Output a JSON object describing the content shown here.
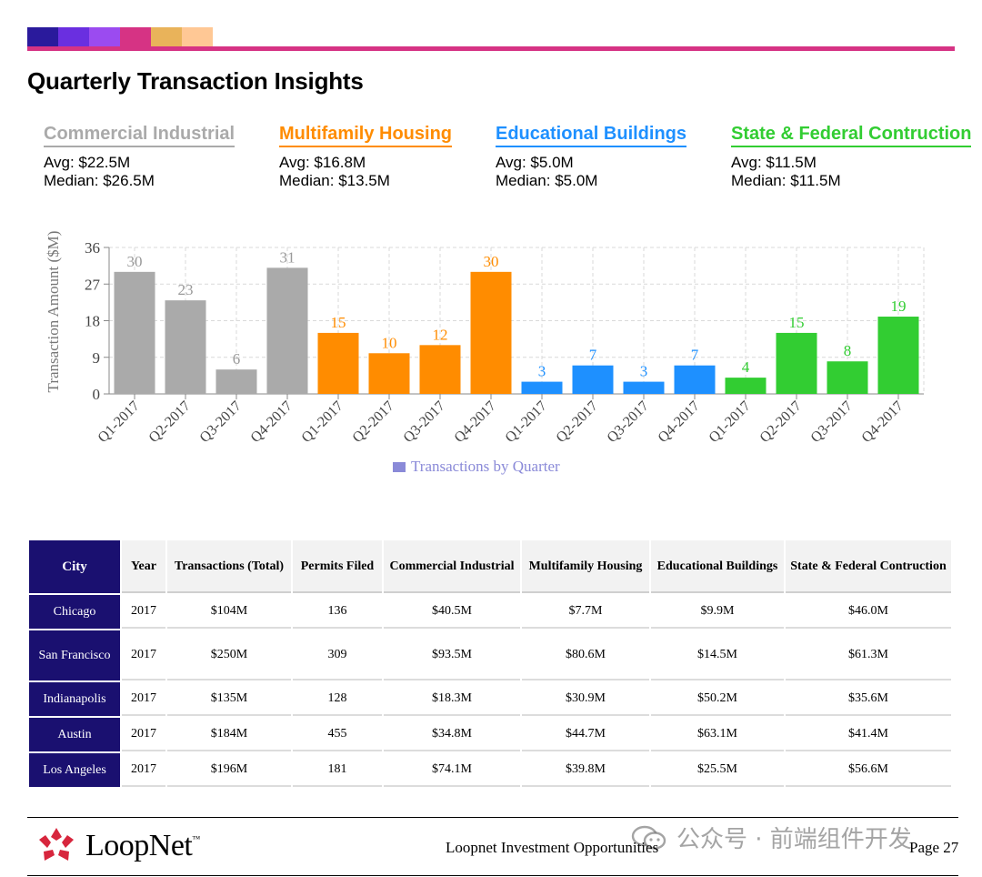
{
  "header": {
    "title": "Quarterly Transaction Insights",
    "swatches": [
      "#2a1a9c",
      "#6a2fe0",
      "#9b4bf0",
      "#d63384",
      "#e9b35a",
      "#ffc895"
    ]
  },
  "stats": [
    {
      "name": "Commercial Industrial",
      "color": "#aaaaaa",
      "avg": "Avg: $22.5M",
      "median": "Median: $26.5M"
    },
    {
      "name": "Multifamily Housing",
      "color": "#ff8c00",
      "avg": "Avg: $16.8M",
      "median": "Median: $13.5M"
    },
    {
      "name": "Educational Buildings",
      "color": "#1e90ff",
      "avg": "Avg: $5.0M",
      "median": "Median: $5.0M"
    },
    {
      "name": "State & Federal Contruction",
      "color": "#32cd32",
      "avg": "Avg: $11.5M",
      "median": "Median: $11.5M"
    }
  ],
  "chart_data": {
    "type": "bar",
    "ylabel": "Transaction Amount ($M)",
    "ylim": [
      0,
      36
    ],
    "yticks": [
      0,
      9,
      18,
      27,
      36
    ],
    "grid": true,
    "legend": {
      "label": "Transactions by Quarter",
      "color": "#8a8ad8",
      "position": "bottom"
    },
    "categories": [
      "Q1-2017",
      "Q2-2017",
      "Q3-2017",
      "Q4-2017",
      "Q1-2017",
      "Q2-2017",
      "Q3-2017",
      "Q4-2017",
      "Q1-2017",
      "Q2-2017",
      "Q3-2017",
      "Q4-2017",
      "Q1-2017",
      "Q2-2017",
      "Q3-2017",
      "Q4-2017"
    ],
    "values": [
      30,
      23,
      6,
      31,
      15,
      10,
      12,
      30,
      3,
      7,
      3,
      7,
      4,
      15,
      8,
      19
    ],
    "colors": [
      "#aaaaaa",
      "#aaaaaa",
      "#aaaaaa",
      "#aaaaaa",
      "#ff8c00",
      "#ff8c00",
      "#ff8c00",
      "#ff8c00",
      "#1e90ff",
      "#1e90ff",
      "#1e90ff",
      "#1e90ff",
      "#32cd32",
      "#32cd32",
      "#32cd32",
      "#32cd32"
    ]
  },
  "table": {
    "headers": [
      "City",
      "Year",
      "Transactions (Total)",
      "Permits Filed",
      "Commercial Industrial",
      "Multifamily Housing",
      "Educational Buildings",
      "State & Federal Contruction"
    ],
    "rows": [
      [
        "Chicago",
        "2017",
        "$104M",
        "136",
        "$40.5M",
        "$7.7M",
        "$9.9M",
        "$46.0M"
      ],
      [
        "San Francisco",
        "2017",
        "$250M",
        "309",
        "$93.5M",
        "$80.6M",
        "$14.5M",
        "$61.3M"
      ],
      [
        "Indianapolis",
        "2017",
        "$135M",
        "128",
        "$18.3M",
        "$30.9M",
        "$50.2M",
        "$35.6M"
      ],
      [
        "Austin",
        "2017",
        "$184M",
        "455",
        "$34.8M",
        "$44.7M",
        "$63.1M",
        "$41.4M"
      ],
      [
        "Los Angeles",
        "2017",
        "$196M",
        "181",
        "$74.1M",
        "$39.8M",
        "$25.5M",
        "$56.6M"
      ]
    ]
  },
  "footer": {
    "brand": "LoopNet",
    "brand_tm": "™",
    "center_text": "Loopnet Investment Opportunities",
    "page": "Page 27",
    "watermark": "公众号 · 前端组件开发",
    "logo_color": "#d7263d"
  }
}
